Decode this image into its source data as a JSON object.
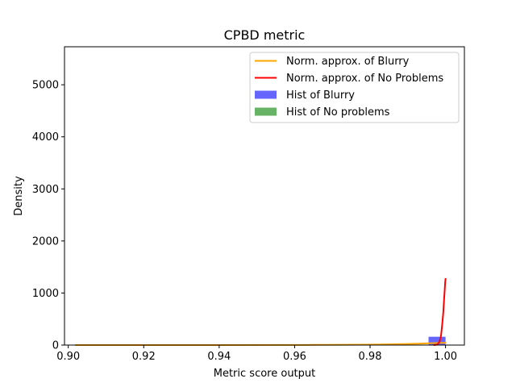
{
  "chart_data": {
    "type": "line",
    "title": "CPBD metric",
    "xlabel": "Metric score output",
    "ylabel": "Density",
    "xlim": [
      0.899,
      1.005
    ],
    "ylim": [
      0,
      5730
    ],
    "x_ticks": [
      0.9,
      0.92,
      0.94,
      0.96,
      0.98,
      1.0
    ],
    "x_tick_labels": [
      "0.90",
      "0.92",
      "0.94",
      "0.96",
      "0.98",
      "1.00"
    ],
    "y_ticks": [
      0,
      1000,
      2000,
      3000,
      4000,
      5000
    ],
    "y_tick_labels": [
      "0",
      "1000",
      "2000",
      "3000",
      "4000",
      "5000"
    ],
    "grid": false,
    "legend_position": "top-right",
    "series": [
      {
        "name": "Norm. approx. of Blurry",
        "kind": "line",
        "color": "#ffa500",
        "x": [
          0.902,
          0.92,
          0.94,
          0.955,
          0.965,
          0.972,
          0.978,
          0.983,
          0.987,
          0.99,
          0.993,
          0.995,
          0.997,
          0.998,
          0.999,
          1.0
        ],
        "y": [
          0,
          0,
          0.5,
          1.5,
          3,
          5,
          8,
          12,
          17,
          22,
          28,
          33,
          38,
          40,
          42,
          43
        ]
      },
      {
        "name": "Norm. approx. of No Problems",
        "kind": "line",
        "color": "#ff0000",
        "x": [
          0.997,
          0.9978,
          0.9984,
          0.9988,
          0.9991,
          0.9994,
          0.9996,
          0.9998,
          0.9999,
          1.0
        ],
        "y": [
          0,
          10,
          60,
          180,
          380,
          620,
          860,
          1080,
          1200,
          1270
        ]
      },
      {
        "name": "Hist of Blurry",
        "kind": "bar",
        "color": "#0000ff",
        "opacity": 0.6,
        "bins": [
          [
            0.9955,
            1.0,
            160
          ]
        ]
      },
      {
        "name": "Hist of No problems",
        "kind": "bar",
        "color": "#008000",
        "opacity": 0.6,
        "bins": [
          [
            0.9995,
            1.0,
            8
          ]
        ]
      }
    ]
  }
}
